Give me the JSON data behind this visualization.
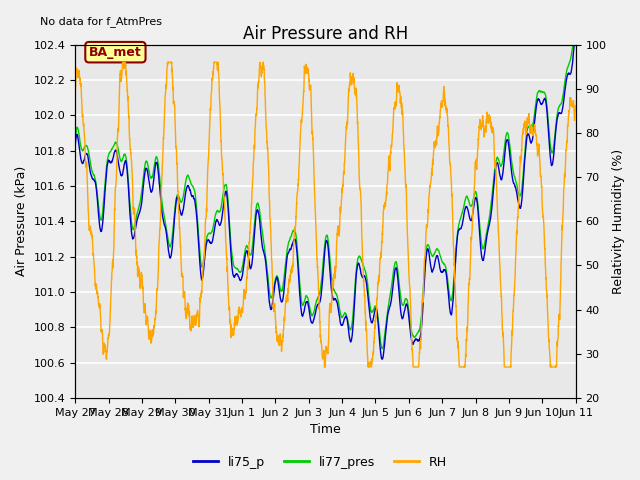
{
  "title": "Air Pressure and RH",
  "top_left_text": "No data for f_AtmPres",
  "annotation_text": "BA_met",
  "xlabel": "Time",
  "ylabel_left": "Air Pressure (kPa)",
  "ylabel_right": "Relativity Humidity (%)",
  "ylim_left": [
    100.4,
    102.4
  ],
  "ylim_right": [
    20,
    100
  ],
  "colors": {
    "li75_p": "#0000cc",
    "li77_pres": "#00cc00",
    "RH": "#ffa500",
    "background": "#e8e8e8",
    "annotation_bg": "#ffff99",
    "annotation_border": "#8b0000"
  },
  "legend_labels": [
    "li75_p",
    "li77_pres",
    "RH"
  ],
  "grid_color": "#ffffff",
  "title_fontsize": 12,
  "label_fontsize": 9,
  "tick_fontsize": 8,
  "fig_facecolor": "#f0f0f0"
}
